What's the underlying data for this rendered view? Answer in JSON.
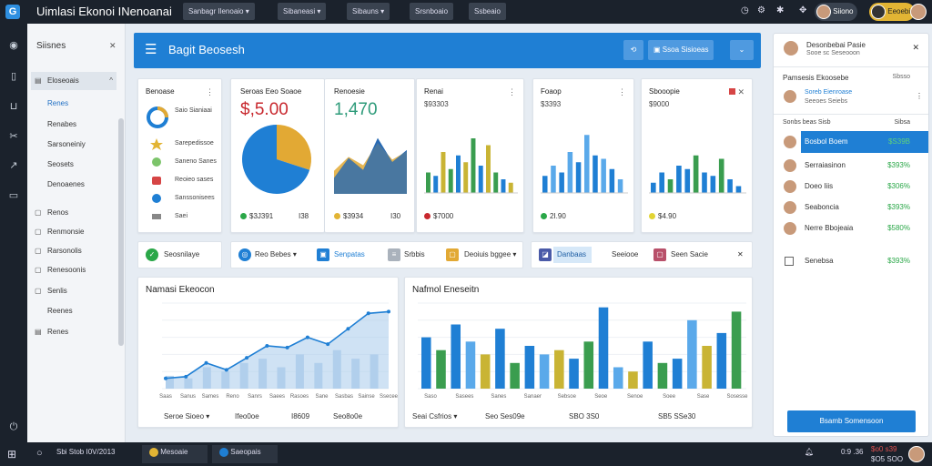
{
  "topbar": {
    "title": "Uimlasi Ekonoi INenoanai",
    "buttons": [
      "Sanbagr Ilenoaio",
      "Sibaneasi",
      "Sibauns",
      "Srsnboaio",
      "Ssbeaio"
    ],
    "user1": "Siiono",
    "user2": "Eeoebi"
  },
  "sidebar": {
    "title": "Siisnes",
    "items": [
      "Eloseoais",
      "Renes",
      "Renabes",
      "Sarsoneiniy",
      "Seosets",
      "Denoaenes",
      "Renos",
      "Renmonsie",
      "Rarsonolis",
      "Renesoonis",
      "Senlis",
      "Reenes",
      "Renes"
    ]
  },
  "header": {
    "title": "Bagit Beosesh",
    "button": "Ssoa Sisioeas"
  },
  "cards": {
    "c1": {
      "title": "Benoase",
      "legend": [
        "Saio Sianiaai",
        "Sarepedissoe",
        "Saneno Sanes",
        "Reoieo sases",
        "Sanssonisees",
        "Saei"
      ]
    },
    "c2": {
      "title": "Seroas Eeo Soaoe",
      "value": "$,5.00",
      "foot": [
        "$3J391",
        "I38"
      ]
    },
    "c3": {
      "title": "Renoesie",
      "value": "1,470",
      "foot": [
        "$3934",
        "I30"
      ]
    },
    "c4": {
      "title": "Renai",
      "sub": "$93303",
      "foot": "$7000"
    },
    "c5": {
      "title": "Foaop",
      "sub": "$3393",
      "foot": "2I.90"
    },
    "c6": {
      "title": "Sbooopie",
      "sub": "$9000",
      "foot": "$4.90"
    }
  },
  "filters": [
    "Seosnilaye",
    "Reo Bebes",
    "Senpatas",
    "Srbbis",
    "Deoiuis bggee",
    "Danbaas",
    "Seeiooe",
    "Seen Sacie"
  ],
  "line_chart": {
    "title": "Namasi Ekeocon",
    "xlabels": [
      "Saas",
      "Sanus",
      "Sames",
      "Reno",
      "Sanrs",
      "Saees",
      "Rasoes",
      "Sane",
      "Sasbas",
      "Sainse",
      "Ssecee"
    ],
    "foot": [
      "Seroe Sioeo",
      "Ifeo0oe",
      "I8609",
      "Seo8o0e"
    ]
  },
  "bar_chart": {
    "title": "Nafmol Eneseitn",
    "xlabels": [
      "Saso",
      "Sasees",
      "Sanes",
      "Sanaer",
      "Sebsoe",
      "Seoe",
      "Senoe",
      "Soee",
      "Sase",
      "Sosesse"
    ],
    "foot": [
      "Seai Csfrios",
      "Seo Ses09e",
      "SBO 3S0",
      "SB5 SSe30"
    ]
  },
  "right_panel": {
    "title": "Desonbebai Pasie",
    "subtitle": "Sooe sc Seseooon",
    "section": "Pamsesis Ekoosebe",
    "section_right": "Sbsso",
    "row_top": {
      "name": "Soreb Eienroase",
      "sub": "Seeoes Seiebs"
    },
    "header_left": "Sonbs beas Sisb",
    "header_right": "Sibsa",
    "rows": [
      {
        "name": "Bosbol Boem",
        "value": "$S39B"
      },
      {
        "name": "Serraiasinon",
        "value": "$393%"
      },
      {
        "name": "Doeo Iiis",
        "value": "$306%"
      },
      {
        "name": "Seaboncia",
        "value": "$393%"
      },
      {
        "name": "Nerre Bbojeaia",
        "value": "$580%"
      }
    ],
    "small_row": {
      "name": "Senebsa",
      "value": "$393%"
    },
    "button": "Bsamb Somensoon"
  },
  "taskbar": {
    "left": "Sbi Stob I0V/2013",
    "apps": [
      "Mesoaie",
      "Saeopais"
    ],
    "time": "0:9 .36",
    "date1": "$o0 s39",
    "date2": "$O5 SOO"
  },
  "colors": {
    "accent": "#1f7fd4",
    "dark": "#1b222c",
    "green": "#2aa748",
    "red": "#c8282e",
    "yellow": "#e2b434"
  },
  "chart_data": [
    {
      "type": "pie",
      "name": "Seroas Eeo Soaoe",
      "values": [
        30,
        70
      ],
      "colors": [
        "#e2a934",
        "#1f7fd4"
      ]
    },
    {
      "type": "area",
      "name": "Renoesie",
      "values": [
        20,
        45,
        30,
        70,
        40,
        55
      ]
    },
    {
      "type": "bar",
      "name": "Renai",
      "values": [
        30,
        25,
        60,
        35,
        55,
        45,
        80,
        40,
        70,
        30,
        20,
        15
      ],
      "colors": [
        "#3a9d4f",
        "#1f7fd4",
        "#c9b434"
      ]
    },
    {
      "type": "bar",
      "name": "Foaop",
      "values": [
        25,
        40,
        30,
        60,
        45,
        85,
        55,
        50,
        35,
        20
      ]
    },
    {
      "type": "bar",
      "name": "Sbooopie",
      "values": [
        15,
        30,
        20,
        40,
        35,
        55,
        30,
        25,
        50,
        20,
        10
      ]
    },
    {
      "type": "line",
      "name": "Namasi Ekeocon",
      "values": [
        12,
        14,
        30,
        22,
        36,
        50,
        48,
        60,
        52,
        70,
        88,
        90
      ]
    },
    {
      "type": "bar",
      "name": "Nafmol Eneseitn",
      "values": [
        60,
        45,
        75,
        55,
        40,
        70,
        30,
        50,
        40,
        45,
        35,
        55,
        95,
        25,
        20,
        55,
        30,
        35,
        80,
        50,
        65,
        90
      ]
    }
  ]
}
